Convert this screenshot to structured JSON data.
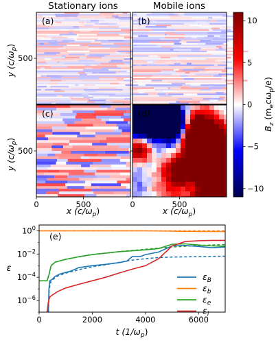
{
  "chart_data": [
    {
      "type": "heatmap",
      "column_titles": [
        "Stationary ions",
        "Mobile ions"
      ],
      "panels": [
        {
          "label": "(a)",
          "column": "Stationary ions",
          "pattern": "fine horizontal filaments, weak amplitude"
        },
        {
          "label": "(b)",
          "column": "Mobile ions",
          "pattern": "fine horizontal filaments, weak amplitude"
        },
        {
          "label": "(c)",
          "column": "Stationary ions",
          "pattern": "coarser horizontal filaments, moderate amplitude"
        },
        {
          "label": "(d)",
          "column": "Mobile ions",
          "pattern": "large blobs of strong positive and negative field"
        }
      ],
      "xlabel": "x (c/ω",
      "xlabel_sub": "p",
      "xlabel_end": ")",
      "ylabel": "y (c/ω",
      "ylabel_sub": "p",
      "ylabel_end": ")",
      "xlim": [
        0,
        1000
      ],
      "ylim": [
        0,
        1000
      ],
      "xticks": [
        0,
        500
      ],
      "yticks": [
        500
      ],
      "colorbar": {
        "label": "B",
        "label_sub": "z",
        "label_rest": " (m",
        "label_sub2": "e",
        "label_rest2": "cω",
        "label_sub3": "p",
        "label_end": "/e)",
        "range": [
          -11,
          11
        ],
        "ticks": [
          10,
          5,
          0,
          -5,
          -10
        ],
        "colormap": "seismic"
      }
    },
    {
      "type": "line",
      "panel_label": "(e)",
      "xlabel": "t (1/ω",
      "xlabel_sub": "p",
      "xlabel_end": ")",
      "ylabel": "ε",
      "xlim": [
        0,
        7000
      ],
      "ylim_log10": [
        -7,
        0.5
      ],
      "y_scale": "log",
      "xticks": [
        0,
        2000,
        4000,
        6000
      ],
      "yticks": [
        {
          "exp": 0,
          "base": "10",
          "sup": "0"
        },
        {
          "exp": -2,
          "base": "10",
          "sup": "−2"
        },
        {
          "exp": -4,
          "base": "10",
          "sup": "−4"
        },
        {
          "exp": -6,
          "base": "10",
          "sup": "−6"
        }
      ],
      "legend_position": "right",
      "series": [
        {
          "name": "ε",
          "sub": "B",
          "color": "#1f77b4",
          "line": "solid",
          "points": [
            [
              350,
              1e-07
            ],
            [
              370,
              1e-05
            ],
            [
              400,
              5e-05
            ],
            [
              500,
              7e-05
            ],
            [
              600,
              0.00012
            ],
            [
              800,
              0.0002
            ],
            [
              1200,
              0.00035
            ],
            [
              1500,
              0.0007
            ],
            [
              2000,
              0.001
            ],
            [
              2500,
              0.0013
            ],
            [
              3000,
              0.0018
            ],
            [
              3300,
              0.0025
            ],
            [
              3500,
              0.006
            ],
            [
              3800,
              0.006
            ],
            [
              4000,
              0.009
            ],
            [
              4500,
              0.015
            ],
            [
              5000,
              0.05
            ],
            [
              5500,
              0.055
            ],
            [
              6000,
              0.045
            ],
            [
              6500,
              0.035
            ],
            [
              7000,
              0.04
            ]
          ]
        },
        {
          "name": "ε",
          "sub": "B",
          "color": "#1f77b4",
          "line": "dashed",
          "legend": false,
          "points": [
            [
              350,
              1e-07
            ],
            [
              380,
              1e-05
            ],
            [
              450,
              5e-05
            ],
            [
              700,
              0.00013
            ],
            [
              1000,
              0.00023
            ],
            [
              1500,
              0.00045
            ],
            [
              2000,
              0.0008
            ],
            [
              2500,
              0.0012
            ],
            [
              3000,
              0.0019
            ],
            [
              3500,
              0.003
            ],
            [
              4000,
              0.004
            ],
            [
              4500,
              0.005
            ],
            [
              5000,
              0.0055
            ],
            [
              6000,
              0.006
            ],
            [
              7000,
              0.0065
            ]
          ]
        },
        {
          "name": "ε",
          "sub": "b",
          "color": "#ff7f0e",
          "line": "solid",
          "points": [
            [
              0,
              1.0
            ],
            [
              2000,
              1.0
            ],
            [
              4000,
              0.99
            ],
            [
              5000,
              0.93
            ],
            [
              6000,
              0.88
            ],
            [
              7000,
              0.87
            ]
          ]
        },
        {
          "name": "ε",
          "sub": "b",
          "color": "#ff7f0e",
          "line": "dashed",
          "legend": false,
          "points": [
            [
              0,
              1.0
            ],
            [
              3000,
              1.0
            ],
            [
              5000,
              0.99
            ],
            [
              6000,
              0.99
            ],
            [
              7000,
              0.99
            ]
          ]
        },
        {
          "name": "ε",
          "sub": "e",
          "color": "#2ca02c",
          "line": "solid",
          "points": [
            [
              0,
              5e-05
            ],
            [
              300,
              5e-05
            ],
            [
              380,
              0.0002
            ],
            [
              450,
              0.001
            ],
            [
              600,
              0.002
            ],
            [
              1000,
              0.0035
            ],
            [
              1500,
              0.006
            ],
            [
              2000,
              0.009
            ],
            [
              3000,
              0.016
            ],
            [
              4000,
              0.023
            ],
            [
              4500,
              0.03
            ],
            [
              5000,
              0.07
            ],
            [
              5500,
              0.075
            ],
            [
              6000,
              0.06
            ],
            [
              6500,
              0.05
            ],
            [
              7000,
              0.048
            ]
          ]
        },
        {
          "name": "ε",
          "sub": "e",
          "color": "#2ca02c",
          "line": "dashed",
          "legend": false,
          "points": [
            [
              0,
              5e-05
            ],
            [
              300,
              5e-05
            ],
            [
              380,
              0.0002
            ],
            [
              450,
              0.001
            ],
            [
              600,
              0.002
            ],
            [
              1000,
              0.0036
            ],
            [
              2000,
              0.009
            ],
            [
              3000,
              0.016
            ],
            [
              4000,
              0.026
            ],
            [
              5000,
              0.04
            ],
            [
              6000,
              0.055
            ],
            [
              7000,
              0.065
            ]
          ]
        },
        {
          "name": "ε",
          "sub": "i",
          "color": "#d62728",
          "line": "solid",
          "points": [
            [
              300,
              1e-07
            ],
            [
              350,
              8e-07
            ],
            [
              400,
              2e-06
            ],
            [
              500,
              3e-06
            ],
            [
              700,
              6e-06
            ],
            [
              1000,
              1.2e-05
            ],
            [
              1500,
              2.5e-05
            ],
            [
              2000,
              5e-05
            ],
            [
              2500,
              0.0001
            ],
            [
              3000,
              0.00023
            ],
            [
              3500,
              0.0005
            ],
            [
              4000,
              0.001
            ],
            [
              4500,
              0.004
            ],
            [
              5000,
              0.05
            ],
            [
              5500,
              0.12
            ],
            [
              6000,
              0.14
            ],
            [
              6500,
              0.15
            ],
            [
              7000,
              0.15
            ]
          ]
        }
      ]
    }
  ]
}
